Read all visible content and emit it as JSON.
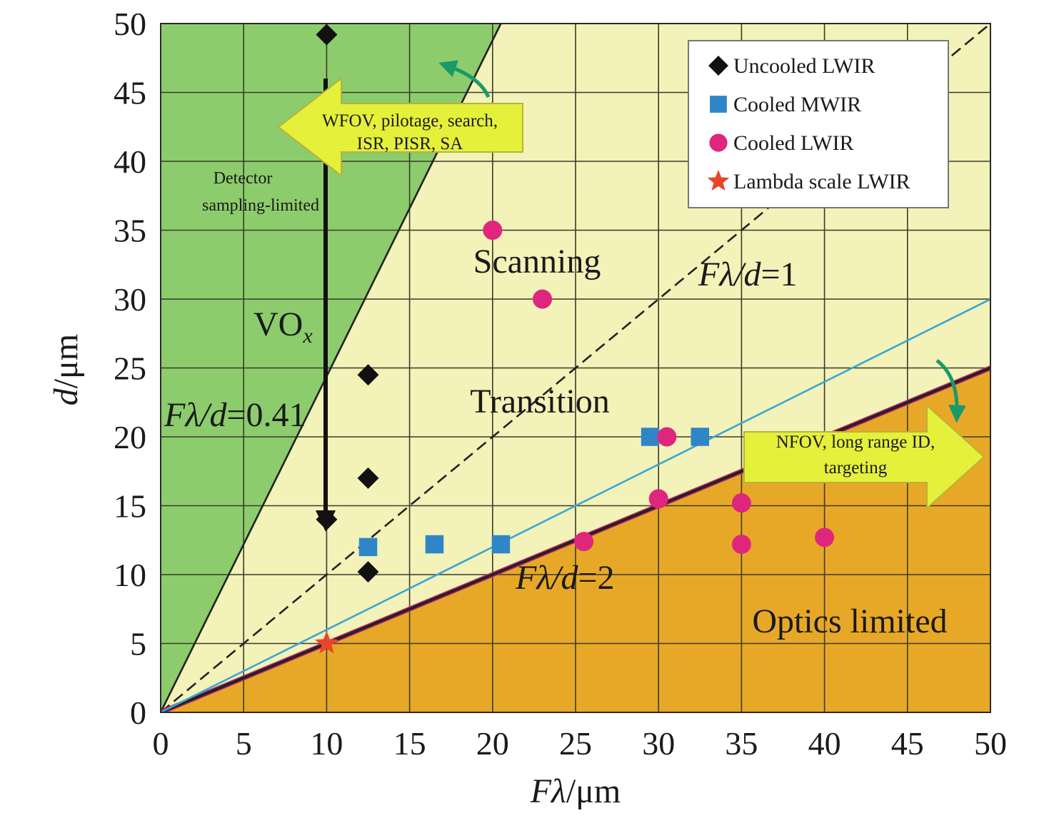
{
  "chart_data": {
    "type": "scatter",
    "title": "",
    "xlabel_parts": [
      "Fλ",
      "/μm"
    ],
    "ylabel_parts": [
      "d",
      "/μm"
    ],
    "xlim": [
      0,
      50
    ],
    "ylim": [
      0,
      50
    ],
    "xticks": [
      "0",
      "5",
      "10",
      "15",
      "20",
      "25",
      "30",
      "35",
      "40",
      "45",
      "50"
    ],
    "yticks": [
      "0",
      "5",
      "10",
      "15",
      "20",
      "25",
      "30",
      "35",
      "40",
      "45",
      "50"
    ],
    "grid": true,
    "legend_position": "top-right",
    "series": [
      {
        "name": "Uncooled LWIR",
        "marker": "diamond",
        "color": "#111111",
        "points": [
          [
            10,
            49.2
          ],
          [
            12.5,
            24.5
          ],
          [
            12.5,
            17
          ],
          [
            12.5,
            10.2
          ],
          [
            10,
            14
          ]
        ]
      },
      {
        "name": "Cooled MWIR",
        "marker": "square",
        "color": "#2e86c8",
        "points": [
          [
            12.5,
            12
          ],
          [
            16.5,
            12.2
          ],
          [
            20.5,
            12.2
          ],
          [
            29.5,
            20
          ],
          [
            32.5,
            20
          ]
        ]
      },
      {
        "name": "Cooled LWIR",
        "marker": "circle",
        "color": "#e0267c",
        "points": [
          [
            20,
            35
          ],
          [
            23,
            30
          ],
          [
            25.5,
            12.4
          ],
          [
            30,
            15.5
          ],
          [
            30.5,
            20
          ],
          [
            35,
            15.2
          ],
          [
            35,
            12.2
          ],
          [
            40,
            12.7
          ]
        ]
      },
      {
        "name": "Lambda scale LWIR",
        "marker": "star",
        "color": "#e8452b",
        "points": [
          [
            10,
            5
          ]
        ]
      }
    ],
    "reference_lines": [
      {
        "slope_ratio": 0.41,
        "d_equals": "Fλ/0.41",
        "style": "solid",
        "color": "#222222"
      },
      {
        "slope_ratio": 1,
        "d_equals": "Fλ",
        "style": "dashed",
        "color": "#222222"
      },
      {
        "slope_ratio": 2,
        "d_equals": "Fλ/2",
        "style": "solid",
        "color": "#222222"
      },
      {
        "slope_ratio": 1.667,
        "d_equals": "0.6·Fλ",
        "style": "solid",
        "color": "#3aa6d6"
      }
    ],
    "region_colors": {
      "sampling_limited": "#8ccc6c",
      "middle": "#f3f2b8",
      "optics_limited": "#e8a827"
    },
    "grid_color": "#3a3a2a",
    "regions": {
      "scanning": "Scanning",
      "transition": "Transition",
      "optics_limited": "Optics limited",
      "detector_line1": "Detector",
      "detector_line2": "sampling-limited"
    },
    "line_labels": {
      "f1": {
        "prefix": "Fλ/",
        "var": "d",
        "suffix": "=1"
      },
      "f041": {
        "prefix": "Fλ/",
        "var": "d",
        "suffix": "=0.41"
      },
      "f2": {
        "prefix": "Fλ/",
        "var": "d",
        "suffix": "=2"
      }
    },
    "vox": {
      "main": "VO",
      "sub": "x"
    },
    "arrows": {
      "wfov_line1": "WFOV, pilotage, search,",
      "wfov_line2": "ISR, PISR, SA",
      "nfov_line1": "NFOV, long range ID,",
      "nfov_line2": "targeting",
      "arrow_color": "#e5f03a",
      "curve_color": "#1a9a6a"
    }
  }
}
